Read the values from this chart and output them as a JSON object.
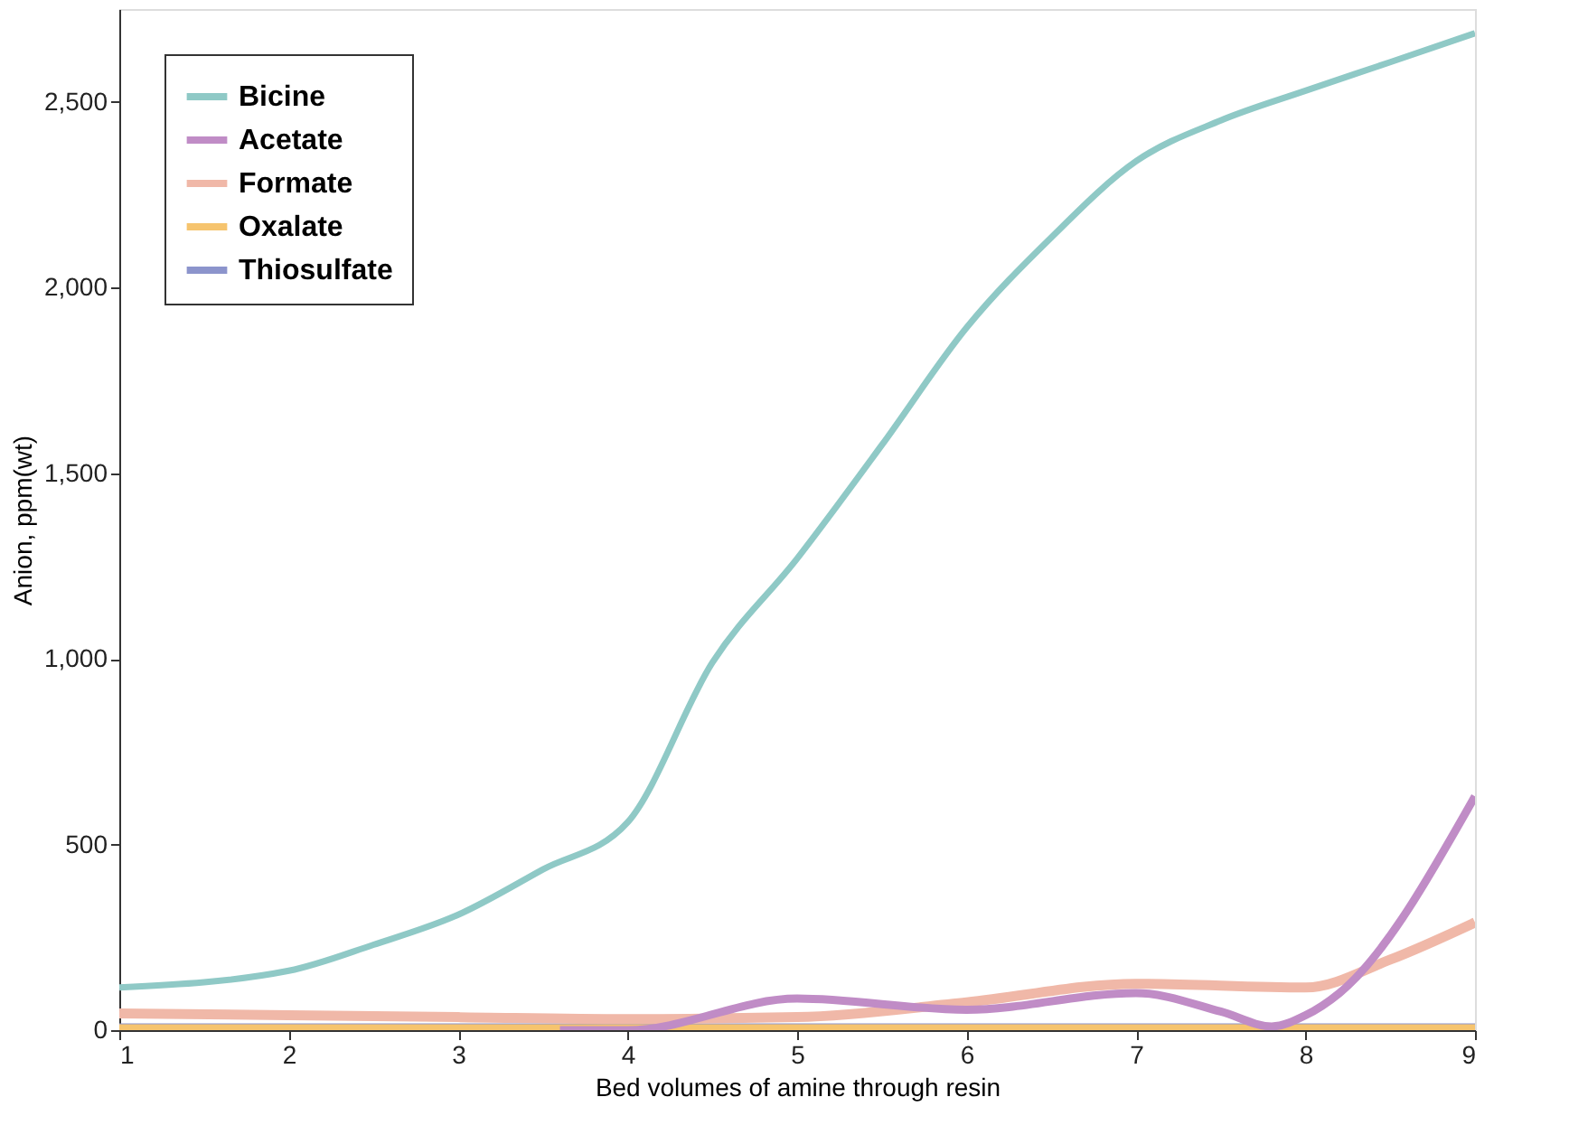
{
  "chart_data": {
    "type": "line",
    "xlabel": "Bed volumes of amine through resin",
    "ylabel": "Anion, ppm(wt)",
    "xlim": [
      1,
      9
    ],
    "xticks": [
      1,
      2,
      3,
      4,
      5,
      6,
      7,
      8,
      9
    ],
    "ylim": [
      0,
      2750
    ],
    "yticks": [
      0,
      {
        "value": 500,
        "label": "500"
      },
      {
        "value": 1000,
        "label": "1,000"
      },
      {
        "value": 1500,
        "label": "1,500"
      },
      {
        "value": 2000,
        "label": "2,000"
      },
      {
        "value": 2500,
        "label": "2,500"
      }
    ],
    "grid": false,
    "legend": "top left",
    "marker": "none",
    "line_style": "solid",
    "series": [
      {
        "name": "Bicine",
        "color": "#8fc9c6",
        "x": [
          1,
          2,
          2.5,
          3,
          3.5,
          4,
          4.5,
          5,
          5.5,
          6,
          6.5,
          7,
          7.5,
          8,
          8.5,
          9
        ],
        "values": [
          115,
          160,
          230,
          311,
          433,
          560,
          990,
          1270,
          1576,
          1892,
          2135,
          2340,
          2450,
          2530,
          2607,
          2685
        ]
      },
      {
        "name": "Acetate",
        "color": "#c08cc6",
        "x": [
          3.6,
          4,
          5,
          6,
          7,
          7.5,
          7.8,
          8,
          8.2,
          9
        ],
        "values": [
          0,
          0,
          85,
          55,
          100,
          50,
          10,
          40,
          100,
          630
        ]
      },
      {
        "name": "Formate",
        "color": "#f0b8a8",
        "x": [
          1,
          2,
          3,
          4,
          5,
          6,
          7,
          8,
          8.5,
          9
        ],
        "values": [
          45,
          40,
          35,
          30,
          35,
          75,
          125,
          115,
          190,
          290
        ]
      },
      {
        "name": "Oxalate",
        "color": "#f6c46e",
        "x": [
          1,
          9
        ],
        "values": [
          0,
          0
        ]
      },
      {
        "name": "Thiosulfate",
        "color": "#8c94cc",
        "x": [
          1,
          9
        ],
        "values": [
          0,
          0
        ]
      }
    ]
  }
}
